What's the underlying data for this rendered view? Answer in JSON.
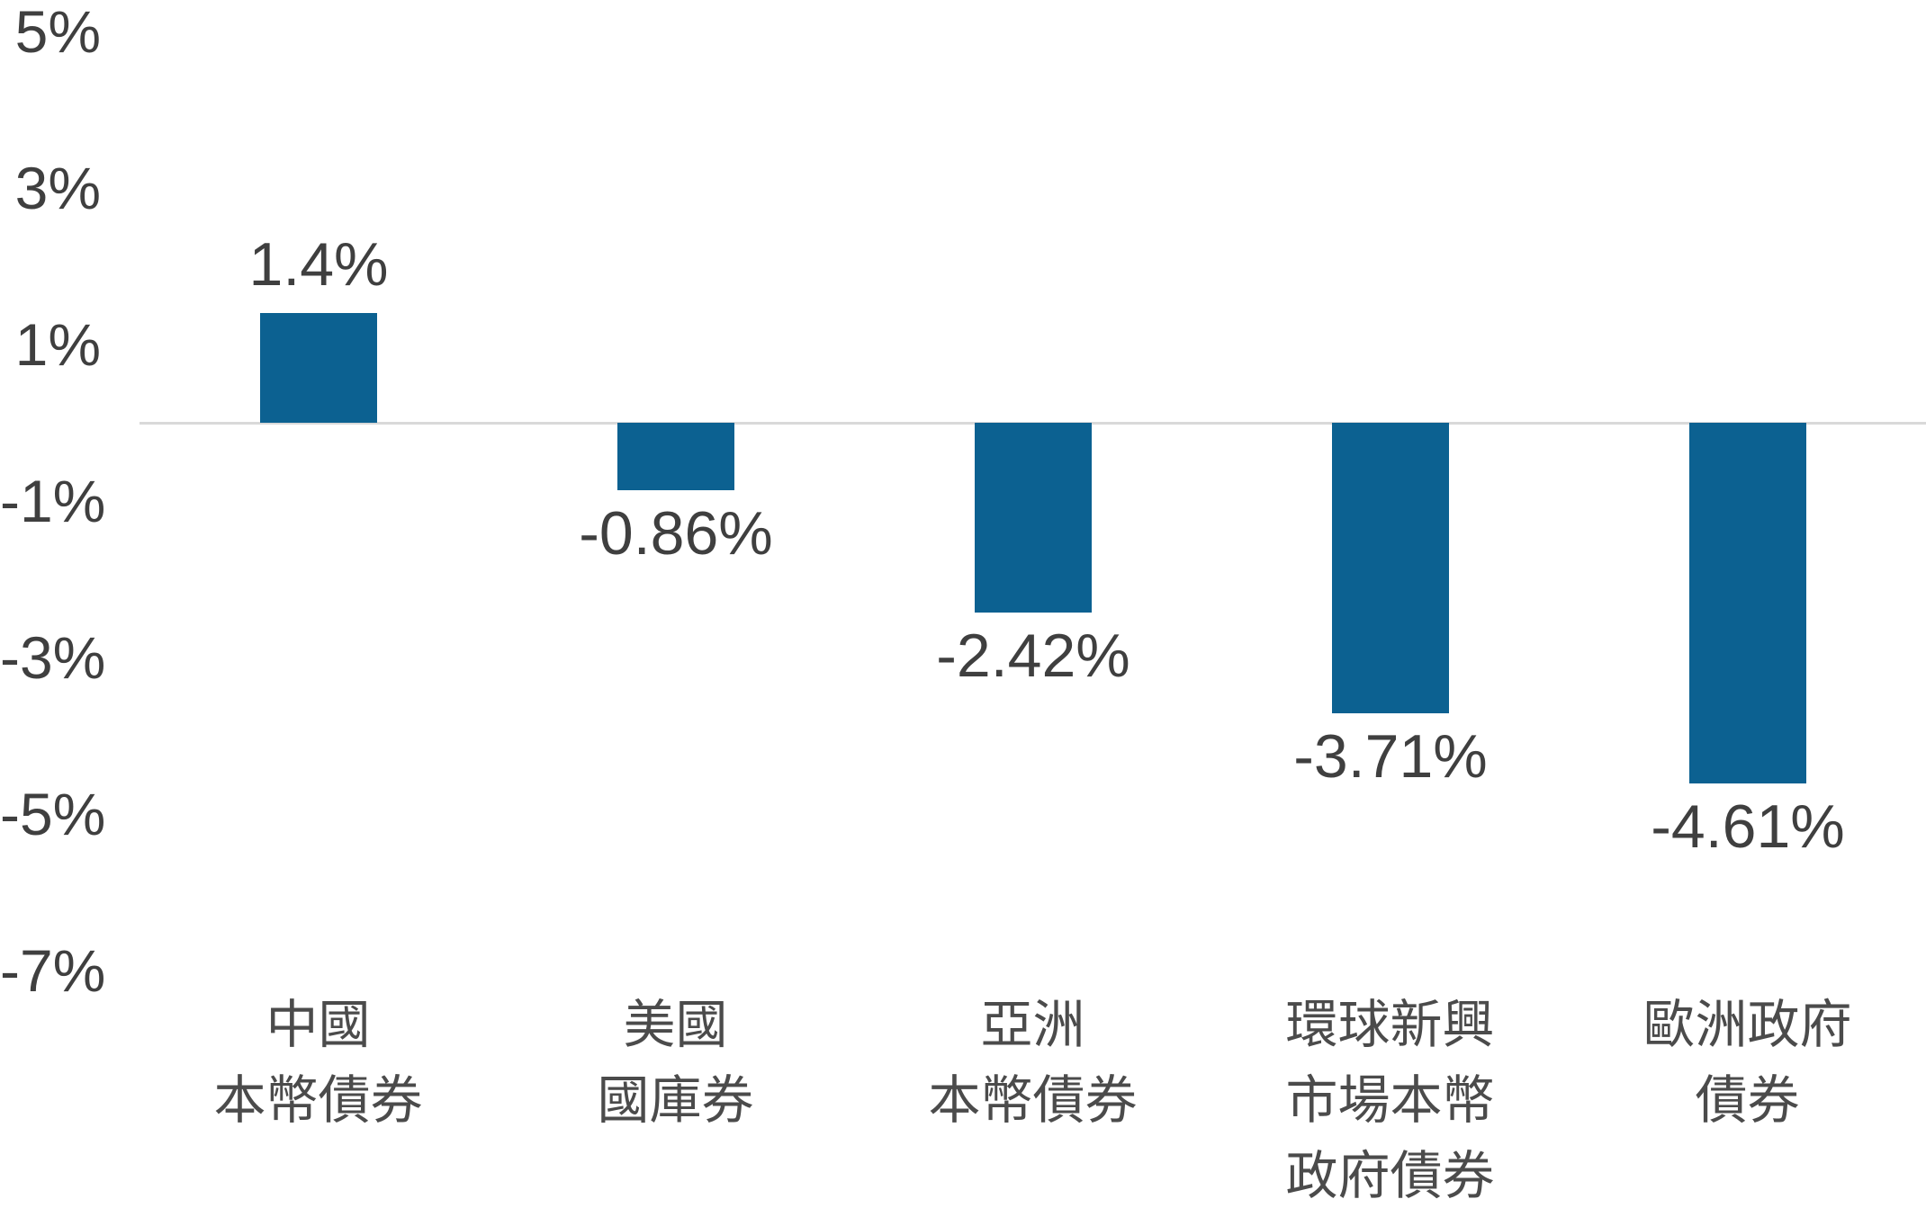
{
  "chart_data": {
    "type": "bar",
    "title": "",
    "xlabel": "",
    "ylabel": "",
    "categories": [
      "中國\n本幣債券",
      "美國\n國庫券",
      "亞洲\n本幣債券",
      "環球新興\n市場本幣\n政府債券",
      "歐洲政府\n債券"
    ],
    "values": [
      1.4,
      -0.86,
      -2.42,
      -3.71,
      -4.61
    ],
    "value_labels": [
      "1.4%",
      "-0.86%",
      "-2.42%",
      "-3.71%",
      "-4.61%"
    ],
    "y_tick_labels": [
      "5%",
      "3%",
      "1%",
      "-1%",
      "-3%",
      "-5%",
      "-7%"
    ],
    "y_tick_values": [
      5,
      3,
      1,
      -1,
      -3,
      -5,
      -7
    ],
    "ylim": [
      -7,
      5
    ],
    "grid": "none",
    "baseline": "zero line only",
    "legend": "none",
    "bar_color": "#0c6191"
  },
  "colors": {
    "bar": "#0c6191",
    "axis_text": "#3f3f3f",
    "value_text": "#3f3f3f",
    "category_text": "#4b4b4b",
    "zero_line": "#d9d9d9",
    "background": "#ffffff"
  }
}
